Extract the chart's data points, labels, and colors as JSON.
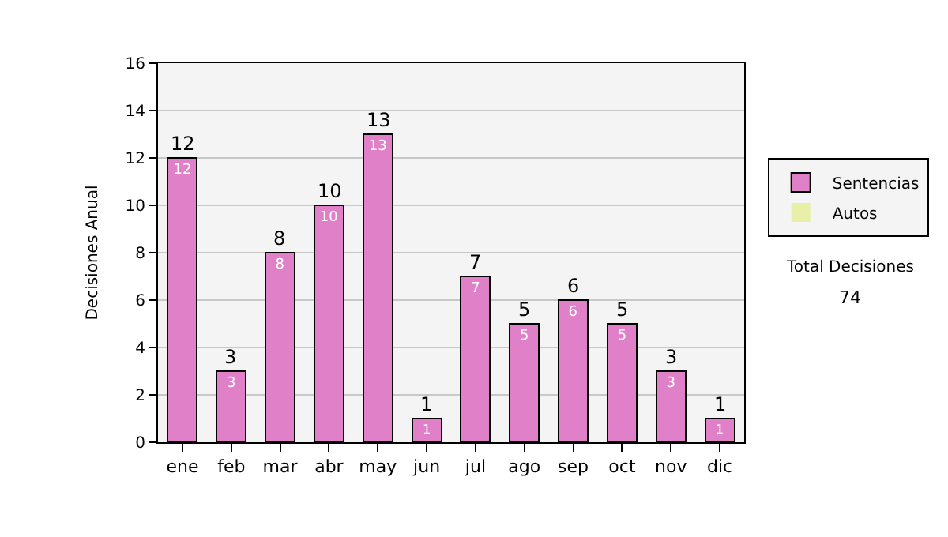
{
  "chart_data": {
    "type": "bar",
    "ylabel": "Decisiones Anual",
    "categories": [
      "ene",
      "feb",
      "mar",
      "abr",
      "may",
      "jun",
      "jul",
      "ago",
      "sep",
      "oct",
      "nov",
      "dic"
    ],
    "series": [
      {
        "name": "Sentencias",
        "color": "#e080c8",
        "values": [
          12,
          3,
          8,
          10,
          13,
          1,
          7,
          5,
          6,
          5,
          3,
          1
        ],
        "value_labels": [
          "12",
          "3",
          "8",
          "10",
          "13",
          "1",
          "7",
          "5",
          "6",
          "5",
          "3",
          "1"
        ]
      },
      {
        "name": "Autos",
        "color": "#e8f0a8",
        "values": [
          0,
          0,
          0,
          0,
          0,
          0,
          0,
          0,
          0,
          0,
          0,
          0
        ]
      }
    ],
    "stacked": true,
    "totals": [
      "12",
      "3",
      "8",
      "10",
      "13",
      "1",
      "7",
      "5",
      "6",
      "5",
      "3",
      "1"
    ],
    "ylim": [
      0,
      16
    ],
    "yticks": [
      0,
      2,
      4,
      6,
      8,
      10,
      12,
      14,
      16
    ],
    "grid": "y",
    "legend": "right",
    "annotations": [
      "Total Decisiones",
      "74"
    ]
  }
}
